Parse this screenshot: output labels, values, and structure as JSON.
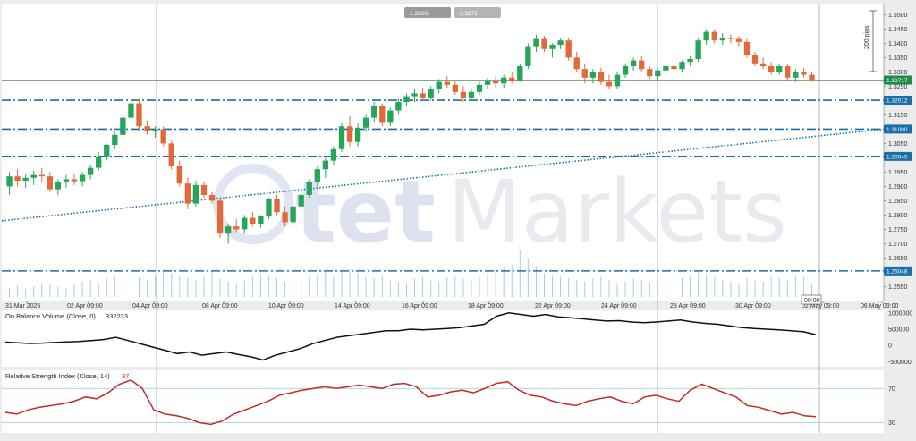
{
  "window": {
    "background": "#ececec"
  },
  "header": {
    "bid_label": "1.3268↑",
    "ask_label": "1.3271↑"
  },
  "watermark": {
    "text_a": "tet",
    "text_b": "Markets"
  },
  "scale_label": "200 pips",
  "price_axis": {
    "ticks": [
      "1.3500",
      "1.3450",
      "1.3400",
      "1.3350",
      "1.3300",
      "1.3250",
      "1.3150",
      "1.3050",
      "1.2950",
      "1.2900",
      "1.2850",
      "1.2800",
      "1.2750",
      "1.2700",
      "1.2650",
      "1.2550"
    ],
    "badges": [
      {
        "label": "1.32717",
        "color": "#1f8a4c"
      },
      {
        "label": "1.32012",
        "color": "#1a6fa8"
      },
      {
        "label": "1.31000",
        "color": "#1a6fa8"
      },
      {
        "label": "1.30049",
        "color": "#1a6fa8"
      },
      {
        "label": "1.26048",
        "color": "#1a6fa8"
      }
    ]
  },
  "time_axis": {
    "ticks": [
      "31 Mar 2025",
      "02 Apr 09:00",
      "04 Apr 09:00",
      "08 Apr 09:00",
      "10 Apr 09:00",
      "14 Apr 09:00",
      "16 Apr 09:00",
      "18 Apr 09:00",
      "22 Apr 09:00",
      "24 Apr 09:00",
      "28 Apr 09:00",
      "30 Apr 09:00",
      "02 May 09:00",
      "06 May 09:00"
    ],
    "cursor_label": "00:00"
  },
  "obv_panel": {
    "title": "On Balance Volume (Close, 0)",
    "value": "332223",
    "ticks": [
      "1000000",
      "500000",
      "0",
      "-500000"
    ]
  },
  "rsi_panel": {
    "title": "Relative Strength Index (Close, 14)",
    "value": "37",
    "ticks": [
      "70",
      "30"
    ]
  },
  "colors": {
    "bull": "#26a65b",
    "bear": "#e06a3a",
    "level_line": "#1a6fa8",
    "obv_line": "#111111",
    "rsi_line": "#c62828"
  },
  "chart_data": [
    {
      "type": "candlestick",
      "title": "",
      "ylim": [
        1.252,
        1.352
      ],
      "xlim": [
        0,
        170
      ],
      "horizontal_levels": [
        1.32012,
        1.31,
        1.30049,
        1.26048
      ],
      "current_price_line": 1.32717,
      "trendline": {
        "x": [
          0,
          170
        ],
        "y": [
          1.278,
          1.31
        ]
      },
      "ohlc": [
        [
          0,
          1.29,
          1.295,
          1.287,
          1.2935
        ],
        [
          1,
          1.2935,
          1.296,
          1.29,
          1.292
        ],
        [
          2,
          1.292,
          1.2945,
          1.2895,
          1.293
        ],
        [
          3,
          1.293,
          1.2955,
          1.2905,
          1.294
        ],
        [
          4,
          1.294,
          1.2965,
          1.2915,
          1.2935
        ],
        [
          5,
          1.2935,
          1.295,
          1.288,
          1.289
        ],
        [
          6,
          1.289,
          1.2925,
          1.287,
          1.2915
        ],
        [
          7,
          1.2915,
          1.294,
          1.2895,
          1.2925
        ],
        [
          8,
          1.2925,
          1.2945,
          1.2905,
          1.2918
        ],
        [
          9,
          1.2918,
          1.295,
          1.29,
          1.294
        ],
        [
          10,
          1.294,
          1.2975,
          1.2925,
          1.2965
        ],
        [
          11,
          1.2965,
          1.302,
          1.2955,
          1.3005
        ],
        [
          12,
          1.3005,
          1.305,
          1.299,
          1.3045
        ],
        [
          13,
          1.3045,
          1.309,
          1.303,
          1.308
        ],
        [
          14,
          1.308,
          1.315,
          1.307,
          1.314
        ],
        [
          15,
          1.314,
          1.32,
          1.312,
          1.319
        ],
        [
          16,
          1.319,
          1.3205,
          1.3095,
          1.311
        ],
        [
          17,
          1.311,
          1.313,
          1.308,
          1.3095
        ],
        [
          18,
          1.3095,
          1.311,
          1.307,
          1.31
        ],
        [
          19,
          1.31,
          1.311,
          1.304,
          1.305
        ],
        [
          20,
          1.305,
          1.306,
          1.296,
          1.297
        ],
        [
          21,
          1.297,
          1.299,
          1.29,
          1.291
        ],
        [
          22,
          1.291,
          1.293,
          1.282,
          1.284
        ],
        [
          23,
          1.284,
          1.292,
          1.283,
          1.2905
        ],
        [
          24,
          1.2905,
          1.2915,
          1.286,
          1.287
        ],
        [
          25,
          1.287,
          1.288,
          1.284,
          1.285
        ],
        [
          26,
          1.285,
          1.286,
          1.272,
          1.2735
        ],
        [
          27,
          1.2735,
          1.277,
          1.27,
          1.276
        ],
        [
          28,
          1.276,
          1.2785,
          1.274,
          1.275
        ],
        [
          29,
          1.275,
          1.28,
          1.2735,
          1.279
        ],
        [
          30,
          1.279,
          1.281,
          1.276,
          1.277
        ],
        [
          31,
          1.277,
          1.28,
          1.2755,
          1.2795
        ],
        [
          32,
          1.2795,
          1.286,
          1.2785,
          1.2855
        ],
        [
          33,
          1.2855,
          1.287,
          1.28,
          1.281
        ],
        [
          34,
          1.281,
          1.283,
          1.276,
          1.2775
        ],
        [
          35,
          1.2775,
          1.284,
          1.276,
          1.283
        ],
        [
          36,
          1.283,
          1.288,
          1.2815,
          1.287
        ],
        [
          37,
          1.287,
          1.2925,
          1.286,
          1.2915
        ],
        [
          38,
          1.2915,
          1.297,
          1.29,
          1.296
        ],
        [
          39,
          1.296,
          1.3,
          1.293,
          1.299
        ],
        [
          40,
          1.299,
          1.304,
          1.2975,
          1.303
        ],
        [
          41,
          1.303,
          1.312,
          1.302,
          1.311
        ],
        [
          42,
          1.311,
          1.3145,
          1.304,
          1.3055
        ],
        [
          43,
          1.3055,
          1.312,
          1.304,
          1.3105
        ],
        [
          44,
          1.3105,
          1.315,
          1.309,
          1.314
        ],
        [
          45,
          1.314,
          1.3195,
          1.3125,
          1.318
        ],
        [
          46,
          1.318,
          1.319,
          1.311,
          1.3125
        ],
        [
          47,
          1.3125,
          1.3175,
          1.311,
          1.3165
        ],
        [
          48,
          1.3165,
          1.3205,
          1.315,
          1.3195
        ],
        [
          49,
          1.3195,
          1.3225,
          1.318,
          1.3215
        ],
        [
          50,
          1.3215,
          1.324,
          1.3195,
          1.3225
        ],
        [
          51,
          1.3225,
          1.3245,
          1.32,
          1.321
        ],
        [
          52,
          1.321,
          1.325,
          1.32,
          1.324
        ],
        [
          53,
          1.324,
          1.3275,
          1.3225,
          1.3265
        ],
        [
          54,
          1.3265,
          1.3285,
          1.3245,
          1.3255
        ],
        [
          55,
          1.3255,
          1.327,
          1.322,
          1.323
        ],
        [
          56,
          1.323,
          1.325,
          1.3195,
          1.321
        ],
        [
          57,
          1.321,
          1.324,
          1.32,
          1.323
        ],
        [
          58,
          1.323,
          1.3265,
          1.322,
          1.3255
        ],
        [
          59,
          1.3255,
          1.328,
          1.324,
          1.3268
        ],
        [
          60,
          1.3268,
          1.3285,
          1.3245,
          1.326
        ],
        [
          61,
          1.326,
          1.329,
          1.3245,
          1.328
        ],
        [
          62,
          1.328,
          1.33,
          1.326,
          1.327
        ],
        [
          63,
          1.327,
          1.333,
          1.3265,
          1.332
        ],
        [
          64,
          1.332,
          1.34,
          1.331,
          1.339
        ],
        [
          65,
          1.339,
          1.343,
          1.337,
          1.3415
        ],
        [
          66,
          1.3415,
          1.3425,
          1.337,
          1.338
        ],
        [
          67,
          1.338,
          1.34,
          1.335,
          1.3395
        ],
        [
          68,
          1.3395,
          1.342,
          1.338,
          1.341
        ],
        [
          69,
          1.341,
          1.342,
          1.334,
          1.335
        ],
        [
          70,
          1.335,
          1.337,
          1.33,
          1.331
        ],
        [
          71,
          1.331,
          1.333,
          1.326,
          1.328
        ],
        [
          72,
          1.328,
          1.331,
          1.326,
          1.33
        ],
        [
          73,
          1.33,
          1.3315,
          1.3255,
          1.3265
        ],
        [
          74,
          1.3265,
          1.329,
          1.324,
          1.325
        ],
        [
          75,
          1.325,
          1.33,
          1.324,
          1.329
        ],
        [
          76,
          1.329,
          1.333,
          1.328,
          1.332
        ],
        [
          77,
          1.332,
          1.335,
          1.3305,
          1.334
        ],
        [
          78,
          1.334,
          1.3355,
          1.33,
          1.331
        ],
        [
          79,
          1.331,
          1.332,
          1.3275,
          1.3285
        ],
        [
          80,
          1.3285,
          1.331,
          1.327,
          1.3305
        ],
        [
          81,
          1.3305,
          1.333,
          1.329,
          1.332
        ],
        [
          82,
          1.332,
          1.3335,
          1.33,
          1.331
        ],
        [
          83,
          1.331,
          1.334,
          1.33,
          1.3335
        ],
        [
          84,
          1.3335,
          1.3355,
          1.332,
          1.3345
        ],
        [
          85,
          1.3345,
          1.342,
          1.3335,
          1.341
        ],
        [
          86,
          1.341,
          1.345,
          1.3395,
          1.344
        ],
        [
          87,
          1.344,
          1.345,
          1.34,
          1.341
        ],
        [
          88,
          1.341,
          1.3435,
          1.3395,
          1.342
        ],
        [
          89,
          1.342,
          1.343,
          1.34,
          1.3415
        ],
        [
          90,
          1.3415,
          1.3425,
          1.339,
          1.3405
        ],
        [
          91,
          1.3405,
          1.3415,
          1.335,
          1.336
        ],
        [
          92,
          1.336,
          1.337,
          1.332,
          1.333
        ],
        [
          93,
          1.333,
          1.335,
          1.331,
          1.332
        ],
        [
          94,
          1.332,
          1.3335,
          1.329,
          1.33
        ],
        [
          95,
          1.33,
          1.333,
          1.329,
          1.332
        ],
        [
          96,
          1.332,
          1.333,
          1.327,
          1.328
        ],
        [
          97,
          1.328,
          1.331,
          1.3265,
          1.33
        ],
        [
          98,
          1.33,
          1.3315,
          1.328,
          1.329
        ],
        [
          99,
          1.329,
          1.33,
          1.3265,
          1.3272
        ]
      ],
      "volume": [
        12,
        15,
        10,
        14,
        18,
        16,
        13,
        11,
        17,
        20,
        22,
        18,
        24,
        28,
        26,
        30,
        25,
        22,
        28,
        35,
        30,
        27,
        25,
        22,
        26,
        33,
        24,
        20,
        18,
        22,
        26,
        30,
        28,
        24,
        20,
        25,
        22,
        26,
        30,
        32,
        28,
        34,
        36,
        30,
        26,
        24,
        28,
        22,
        20,
        18,
        24,
        26,
        22,
        20,
        25,
        28,
        24,
        22,
        26,
        30,
        34,
        38,
        42,
        60,
        50,
        38,
        30,
        28,
        26,
        24,
        22,
        20,
        24,
        26,
        22,
        18,
        20,
        24,
        22,
        20,
        18,
        26,
        22,
        24,
        28,
        32,
        30,
        26,
        22,
        20,
        18,
        24,
        22,
        20,
        26,
        24,
        22,
        28,
        26,
        18
      ]
    },
    {
      "type": "line",
      "title": "On Balance Volume (Close, 0)",
      "ylim": [
        -600000,
        1050000
      ],
      "series": [
        {
          "values": [
            100000,
            80000,
            60000,
            70000,
            90000,
            110000,
            120000,
            150000,
            180000,
            250000,
            150000,
            50000,
            -50000,
            -150000,
            -250000,
            -200000,
            -300000,
            -250000,
            -200000,
            -280000,
            -350000,
            -450000,
            -300000,
            -200000,
            -100000,
            50000,
            150000,
            250000,
            300000,
            350000,
            400000,
            450000,
            450000,
            500000,
            480000,
            500000,
            520000,
            550000,
            600000,
            650000,
            900000,
            1000000,
            950000,
            900000,
            950000,
            880000,
            850000,
            820000,
            780000,
            750000,
            760000,
            720000,
            700000,
            720000,
            750000,
            780000,
            720000,
            680000,
            650000,
            600000,
            550000,
            520000,
            500000,
            480000,
            450000,
            420000,
            332223
          ]
        }
      ]
    },
    {
      "type": "line",
      "title": "Relative Strength Index (Close, 14)",
      "ylim": [
        20,
        85
      ],
      "reference_lines": [
        70,
        30
      ],
      "series": [
        {
          "values": [
            42,
            40,
            45,
            48,
            50,
            52,
            55,
            60,
            58,
            65,
            75,
            80,
            70,
            45,
            40,
            38,
            35,
            30,
            28,
            32,
            40,
            45,
            50,
            55,
            62,
            65,
            68,
            70,
            72,
            70,
            72,
            74,
            72,
            70,
            75,
            76,
            72,
            60,
            62,
            66,
            68,
            65,
            70,
            76,
            78,
            68,
            62,
            60,
            55,
            52,
            50,
            55,
            58,
            60,
            55,
            52,
            60,
            62,
            58,
            55,
            68,
            75,
            70,
            65,
            60,
            50,
            48,
            44,
            40,
            42,
            38,
            37
          ]
        }
      ]
    }
  ]
}
